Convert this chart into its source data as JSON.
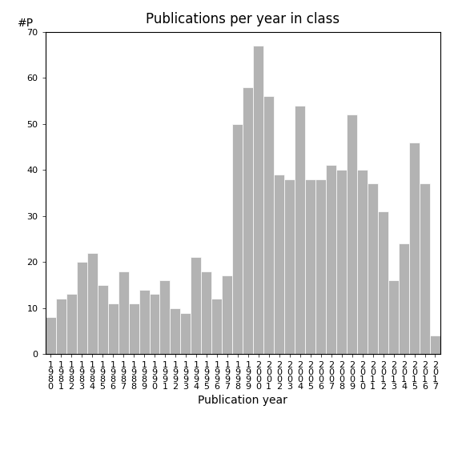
{
  "years": [
    1980,
    1981,
    1982,
    1983,
    1984,
    1985,
    1986,
    1987,
    1988,
    1989,
    1990,
    1991,
    1992,
    1993,
    1994,
    1995,
    1996,
    1997,
    1998,
    1999,
    2000,
    2001,
    2002,
    2003,
    2004,
    2005,
    2006,
    2007,
    2008,
    2009,
    2010,
    2011,
    2012,
    2013,
    2014,
    2015,
    2016,
    2017
  ],
  "values": [
    8,
    12,
    13,
    20,
    22,
    15,
    11,
    18,
    11,
    14,
    13,
    16,
    10,
    9,
    21,
    18,
    12,
    17,
    50,
    58,
    67,
    56,
    39,
    38,
    54,
    38,
    38,
    41,
    40,
    52,
    40,
    37,
    31,
    16,
    24,
    46,
    37,
    4
  ],
  "bar_color": "#b3b3b3",
  "bar_edgecolor": "#ffffff",
  "title": "Publications per year in class",
  "xlabel": "Publication year",
  "ylabel": "#P",
  "ylim": [
    0,
    70
  ],
  "yticks": [
    0,
    10,
    20,
    30,
    40,
    50,
    60,
    70
  ],
  "background_color": "#ffffff",
  "title_fontsize": 12,
  "axis_fontsize": 10,
  "tick_fontsize": 8
}
